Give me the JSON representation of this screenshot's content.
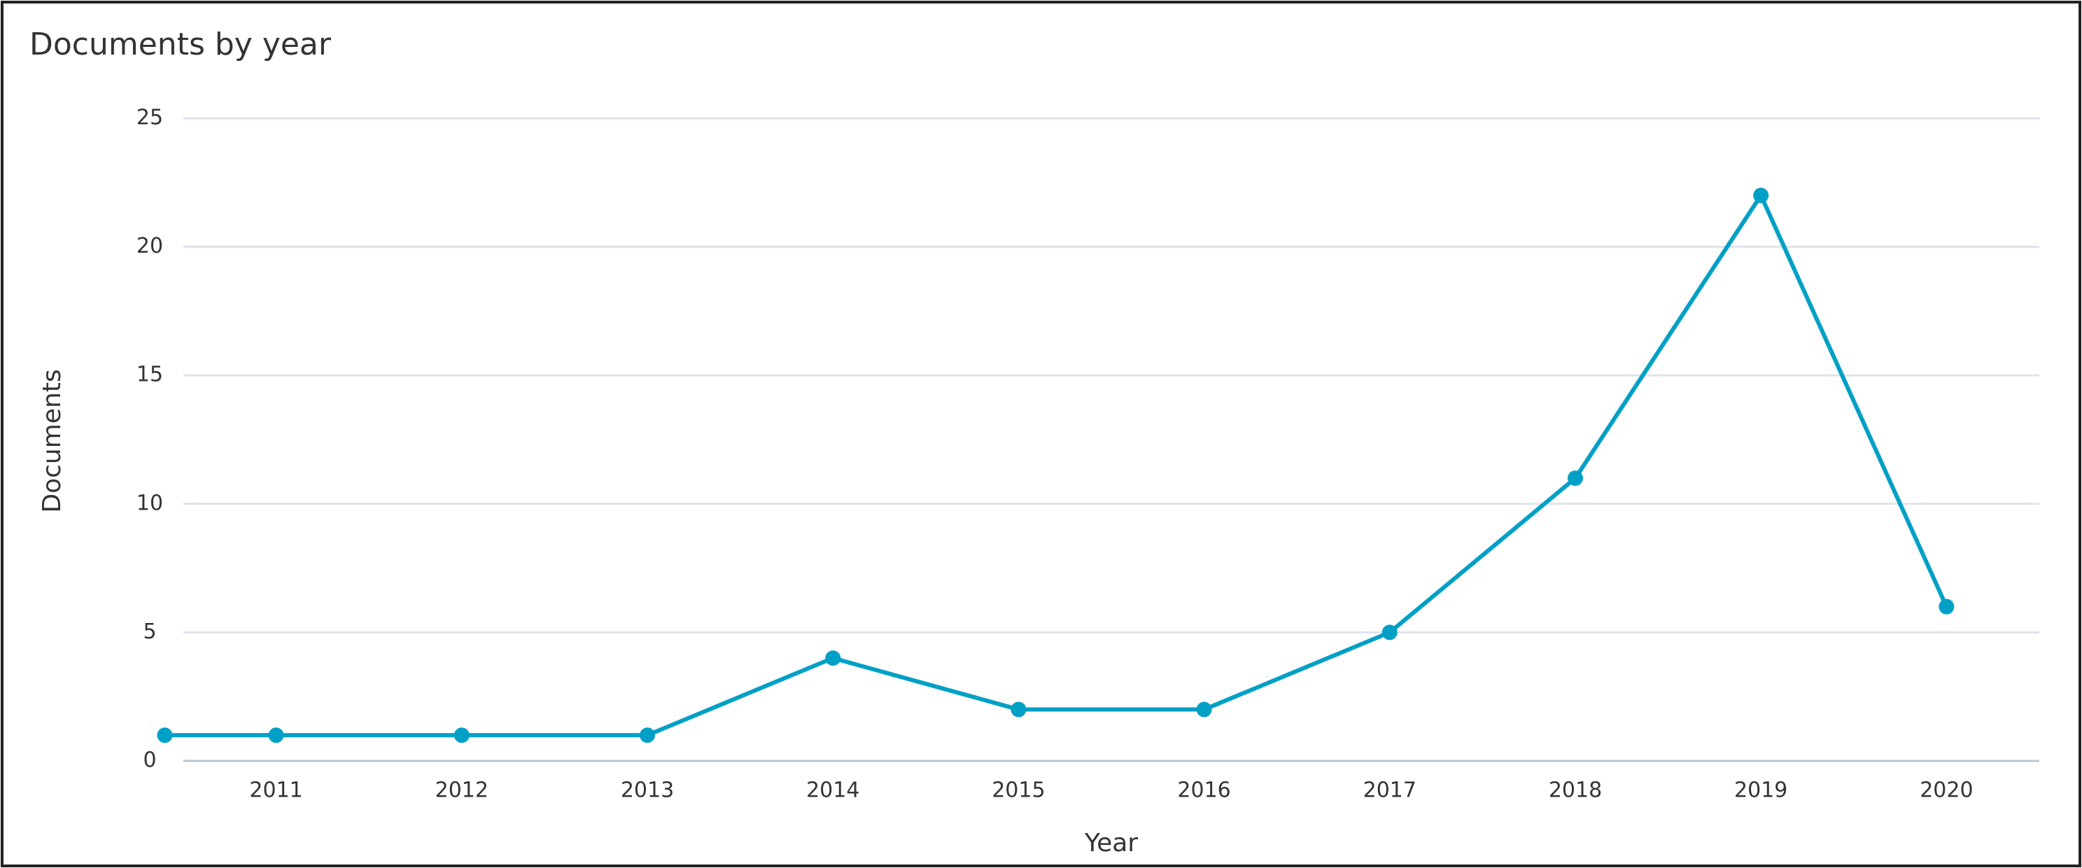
{
  "chart_data": {
    "type": "line",
    "title": "Documents by year",
    "x_label": "Year",
    "y_label": "Documents",
    "x": [
      2010.4,
      2011,
      2012,
      2013,
      2014,
      2015,
      2016,
      2017,
      2018,
      2019,
      2020
    ],
    "series": [
      {
        "name": "Documents",
        "color": "#00a0c6",
        "values": [
          1,
          1,
          1,
          1,
          4,
          2,
          2,
          5,
          11,
          22,
          6
        ]
      }
    ],
    "xlim": [
      2010.5,
      2020.5
    ],
    "xticks": [
      2011,
      2012,
      2013,
      2014,
      2015,
      2016,
      2017,
      2018,
      2019,
      2020
    ],
    "ylim": [
      0,
      25
    ],
    "yticks": [
      0,
      5,
      10,
      15,
      20,
      25
    ],
    "grid": true
  }
}
